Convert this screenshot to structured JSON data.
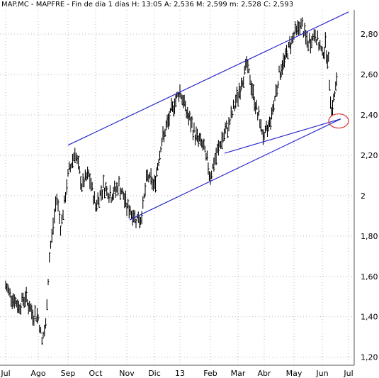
{
  "header": {
    "title": "MAP.MC - MAPFRE - Fin de día 1 días  H: 13:05  A: 2,536  M: 2,599  m: 2,528  C: 2,593"
  },
  "colors": {
    "price": "#000000",
    "trendline": "#2a2acc",
    "highlight": "#e03030",
    "grid": "#b8b8b8",
    "axis": "#555555"
  },
  "chart_data": {
    "type": "bar",
    "style": "ohlc",
    "symbol": "MAP.MC",
    "name": "MAPFRE",
    "title": "MAP.MC - MAPFRE - Fin de día 1 días",
    "last": {
      "time": "13:05",
      "open": 2.536,
      "high": 2.599,
      "low": 2.528,
      "close": 2.593
    },
    "x_ticks": [
      "Jul",
      "Ago",
      "Sep",
      "Oct",
      "Nov",
      "Dic",
      "13",
      "Feb",
      "Mar",
      "Abr",
      "May",
      "Jun",
      "Jul"
    ],
    "y_ticks": [
      "1,20",
      "1,40",
      "1,60",
      "1,80",
      "2",
      "2,20",
      "2,40",
      "2,60",
      "2,80"
    ],
    "y_tick_values": [
      1.2,
      1.4,
      1.6,
      1.8,
      2.0,
      2.2,
      2.4,
      2.6,
      2.8
    ],
    "ylim": [
      1.16,
      2.92
    ],
    "y_axis_side": "right",
    "grid": true,
    "price_anchors": [
      [
        "Jul",
        1.55
      ],
      [
        "Jul",
        1.5
      ],
      [
        "Jul",
        1.45
      ],
      [
        "Jul",
        1.5
      ],
      [
        "Jul",
        1.42
      ],
      [
        "Ago",
        1.4
      ],
      [
        "Ago",
        1.28
      ],
      [
        "Ago",
        1.35
      ],
      [
        "Ago",
        1.7
      ],
      [
        "Ago",
        1.85
      ],
      [
        "Ago",
        2.0
      ],
      [
        "Ago",
        1.85
      ],
      [
        "Ago",
        1.95
      ],
      [
        "Sep",
        2.1
      ],
      [
        "Sep",
        2.22
      ],
      [
        "Sep",
        2.05
      ],
      [
        "Sep",
        2.1
      ],
      [
        "Oct",
        1.95
      ],
      [
        "Oct",
        2.05
      ],
      [
        "Oct",
        2.0
      ],
      [
        "Oct",
        2.05
      ],
      [
        "Nov",
        1.95
      ],
      [
        "Nov",
        1.9
      ],
      [
        "Nov",
        1.88
      ],
      [
        "Nov",
        2.1
      ],
      [
        "Dic",
        2.05
      ],
      [
        "Dic",
        2.25
      ],
      [
        "Dic",
        2.35
      ],
      [
        "Dic",
        2.45
      ],
      [
        "13",
        2.52
      ],
      [
        "13",
        2.4
      ],
      [
        "13",
        2.3
      ],
      [
        "13",
        2.25
      ],
      [
        "Feb",
        2.1
      ],
      [
        "Feb",
        2.25
      ],
      [
        "Feb",
        2.35
      ],
      [
        "Mar",
        2.5
      ],
      [
        "Mar",
        2.65
      ],
      [
        "Mar",
        2.45
      ],
      [
        "Abr",
        2.28
      ],
      [
        "Abr",
        2.4
      ],
      [
        "Abr",
        2.6
      ],
      [
        "Abr",
        2.7
      ],
      [
        "May",
        2.8
      ],
      [
        "May",
        2.85
      ],
      [
        "May",
        2.75
      ],
      [
        "May",
        2.8
      ],
      [
        "Jun",
        2.7
      ],
      [
        "Jun",
        2.75
      ],
      [
        "Jun",
        2.65
      ],
      [
        "Jun",
        2.42
      ],
      [
        "Jun",
        2.5
      ],
      [
        "Jun",
        2.59
      ]
    ],
    "trendlines": [
      {
        "name": "channel-top",
        "from": [
          "Sep",
          2.25
        ],
        "to": [
          "Jun",
          2.91
        ]
      },
      {
        "name": "channel-bottom",
        "from": [
          "Nov",
          1.88
        ],
        "to": [
          "Jun",
          2.38
        ]
      },
      {
        "name": "support-line",
        "from": [
          "Feb",
          2.21
        ],
        "to": [
          "Jun",
          2.38
        ]
      }
    ],
    "highlight": {
      "shape": "ellipse",
      "at": [
        "Jun",
        2.37
      ]
    }
  }
}
